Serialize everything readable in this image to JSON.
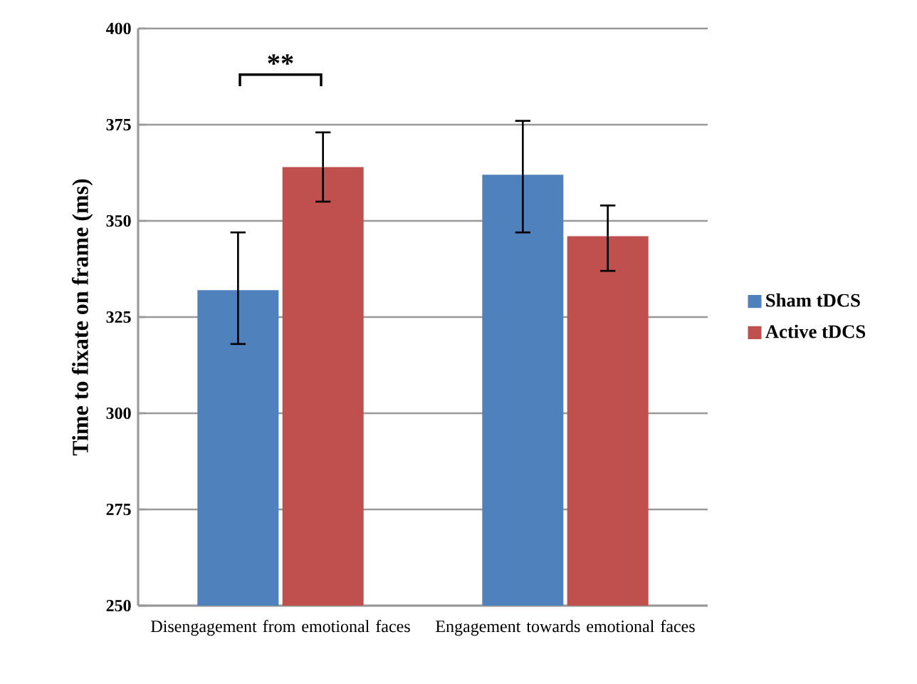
{
  "chart_data": {
    "type": "bar",
    "ylabel": "Time to fixate on frame (ms)",
    "categories": [
      "Disengagement from emotional faces",
      "Engagement towards emotional faces"
    ],
    "series": [
      {
        "name": "Sham tDCS",
        "color": "#4f81bd",
        "values": [
          332,
          362
        ],
        "errors": [
          [
            318,
            347
          ],
          [
            347,
            376
          ]
        ]
      },
      {
        "name": "Active tDCS",
        "color": "#c0504d",
        "values": [
          364,
          346
        ],
        "errors": [
          [
            355,
            373
          ],
          [
            337,
            354
          ]
        ]
      }
    ],
    "ylim": [
      250,
      400
    ],
    "yticks": [
      250,
      275,
      300,
      325,
      350,
      375,
      400
    ],
    "grid": "y",
    "legend": "right",
    "annotations": [
      "**"
    ]
  }
}
